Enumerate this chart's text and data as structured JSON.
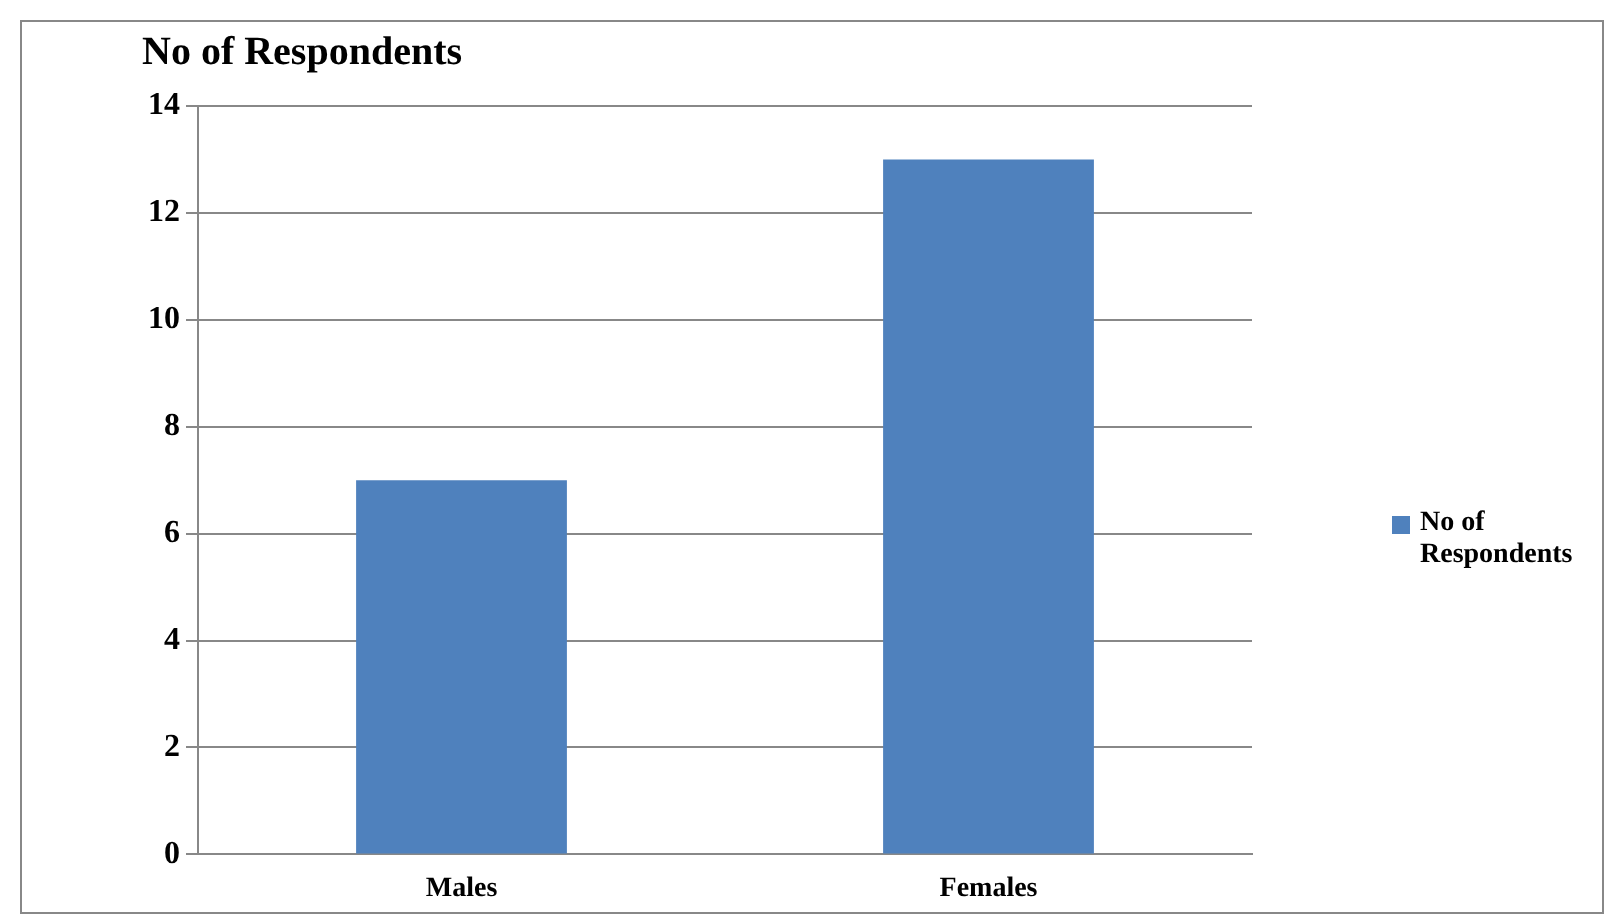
{
  "chart_data": {
    "type": "bar",
    "title": "No of Respondents",
    "categories": [
      "Males",
      "Females"
    ],
    "series": [
      {
        "name": "No of Respondents",
        "color": "#4f81bd",
        "values": [
          7,
          13
        ]
      }
    ],
    "ylim": [
      0,
      14
    ],
    "yticks": [
      0,
      2,
      4,
      6,
      8,
      10,
      12,
      14
    ],
    "grid": "y",
    "legend": "right"
  }
}
